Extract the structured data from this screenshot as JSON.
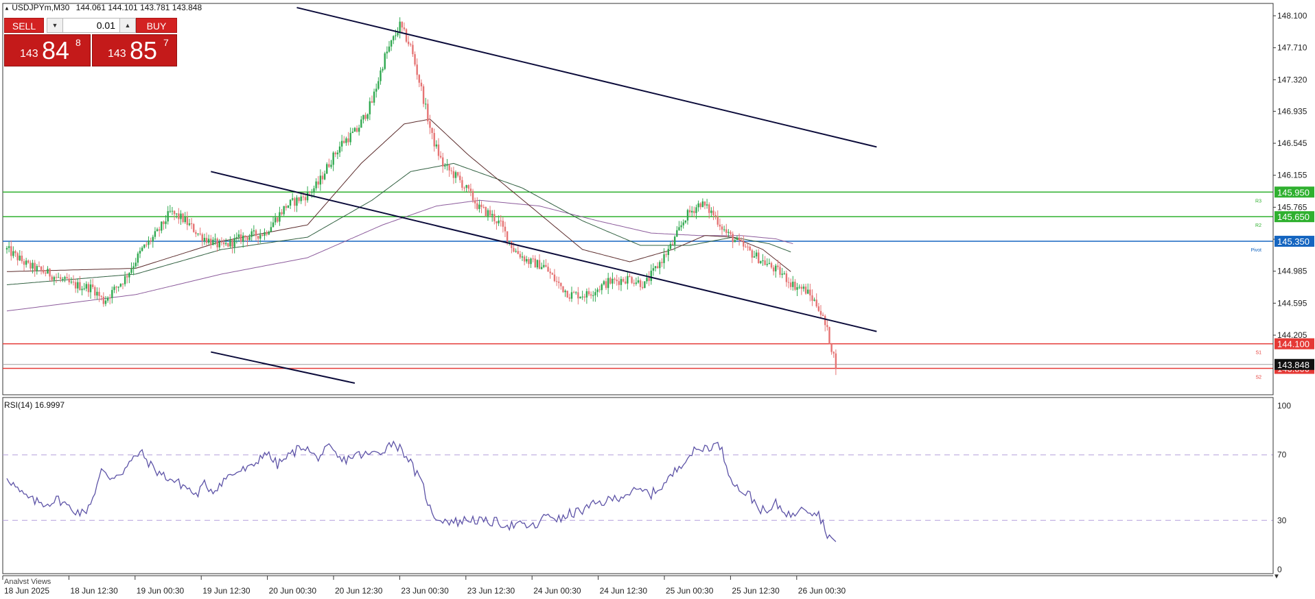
{
  "header": {
    "symbol": "USDJPYm,M30",
    "ohlc": "144.061 144.101 143.781 143.848"
  },
  "trade_panel": {
    "sell_label": "SELL",
    "buy_label": "BUY",
    "lot_value": "0.01",
    "sell_price_small": "143",
    "sell_price_big": "84",
    "sell_price_sup": "8",
    "buy_price_small": "143",
    "buy_price_big": "85",
    "buy_price_sup": "7"
  },
  "chart_data": [
    {
      "type": "candlestick",
      "title": "USDJPYm,M30",
      "ylim": [
        143.7,
        148.2
      ],
      "y_ticks": [
        "148.100",
        "147.710",
        "147.320",
        "146.935",
        "146.545",
        "146.155",
        "145.765",
        "145.375",
        "144.985",
        "144.595",
        "144.205"
      ],
      "x_tick_labels": [
        "18 Jun 2025",
        "18 Jun 12:30",
        "19 Jun 00:30",
        "19 Jun 12:30",
        "20 Jun 00:30",
        "20 Jun 12:30",
        "23 Jun 00:30",
        "23 Jun 12:30",
        "24 Jun 00:30",
        "24 Jun 12:30",
        "25 Jun 00:30",
        "25 Jun 12:30",
        "26 Jun 00:30"
      ],
      "anchors": [
        [
          0,
          145.25
        ],
        [
          10,
          145.05
        ],
        [
          20,
          144.95
        ],
        [
          30,
          144.82
        ],
        [
          40,
          144.78
        ],
        [
          45,
          144.62
        ],
        [
          55,
          144.9
        ],
        [
          63,
          145.25
        ],
        [
          70,
          145.45
        ],
        [
          76,
          145.7
        ],
        [
          82,
          145.62
        ],
        [
          90,
          145.42
        ],
        [
          100,
          145.28
        ],
        [
          110,
          145.4
        ],
        [
          120,
          145.45
        ],
        [
          130,
          145.78
        ],
        [
          140,
          145.92
        ],
        [
          145,
          146.05
        ],
        [
          150,
          146.3
        ],
        [
          156,
          146.55
        ],
        [
          163,
          146.7
        ],
        [
          170,
          147.05
        ],
        [
          176,
          147.6
        ],
        [
          183,
          147.98
        ],
        [
          188,
          147.72
        ],
        [
          193,
          147.2
        ],
        [
          198,
          146.62
        ],
        [
          203,
          146.28
        ],
        [
          210,
          146.12
        ],
        [
          215,
          145.95
        ],
        [
          220,
          145.75
        ],
        [
          225,
          145.68
        ],
        [
          230,
          145.55
        ],
        [
          236,
          145.25
        ],
        [
          243,
          145.1
        ],
        [
          250,
          145.05
        ],
        [
          256,
          144.85
        ],
        [
          262,
          144.7
        ],
        [
          270,
          144.7
        ],
        [
          280,
          144.85
        ],
        [
          290,
          144.9
        ],
        [
          297,
          144.82
        ],
        [
          303,
          145.05
        ],
        [
          310,
          145.32
        ],
        [
          316,
          145.65
        ],
        [
          323,
          145.82
        ],
        [
          329,
          145.68
        ],
        [
          335,
          145.45
        ],
        [
          342,
          145.3
        ],
        [
          348,
          145.18
        ],
        [
          355,
          145.05
        ],
        [
          361,
          144.95
        ],
        [
          366,
          144.82
        ],
        [
          372,
          144.75
        ],
        [
          378,
          144.55
        ],
        [
          382,
          144.25
        ],
        [
          386,
          143.85
        ]
      ],
      "indicators": {
        "ma_fast": [
          [
            0,
            144.98
          ],
          [
            60,
            145.02
          ],
          [
            100,
            145.35
          ],
          [
            140,
            145.55
          ],
          [
            165,
            146.3
          ],
          [
            185,
            146.78
          ],
          [
            197,
            146.84
          ],
          [
            215,
            146.4
          ],
          [
            245,
            145.75
          ],
          [
            268,
            145.25
          ],
          [
            290,
            145.1
          ],
          [
            310,
            145.25
          ],
          [
            325,
            145.42
          ],
          [
            338,
            145.4
          ],
          [
            352,
            145.25
          ],
          [
            365,
            144.98
          ]
        ],
        "ma_mid": [
          [
            0,
            144.82
          ],
          [
            60,
            144.95
          ],
          [
            100,
            145.25
          ],
          [
            140,
            145.4
          ],
          [
            170,
            145.85
          ],
          [
            188,
            146.2
          ],
          [
            208,
            146.3
          ],
          [
            240,
            146.0
          ],
          [
            268,
            145.6
          ],
          [
            295,
            145.3
          ],
          [
            318,
            145.3
          ],
          [
            338,
            145.4
          ],
          [
            355,
            145.32
          ],
          [
            365,
            145.22
          ]
        ],
        "ma_slow": [
          [
            0,
            144.5
          ],
          [
            60,
            144.7
          ],
          [
            100,
            144.95
          ],
          [
            140,
            145.15
          ],
          [
            175,
            145.55
          ],
          [
            200,
            145.78
          ],
          [
            220,
            145.85
          ],
          [
            248,
            145.78
          ],
          [
            275,
            145.6
          ],
          [
            300,
            145.45
          ],
          [
            322,
            145.42
          ],
          [
            342,
            145.42
          ],
          [
            358,
            145.38
          ],
          [
            366,
            145.32
          ]
        ]
      },
      "horizontal_levels": [
        {
          "value": 145.95,
          "label": "145.950",
          "tag": "R3",
          "color": "#2fb02f"
        },
        {
          "value": 145.65,
          "label": "145.650",
          "tag": "R2",
          "color": "#2fb02f"
        },
        {
          "value": 145.35,
          "label": "145.350",
          "tag": "Pivot",
          "color": "#1565c0"
        },
        {
          "value": 144.1,
          "label": "144.100",
          "tag": "S1",
          "color": "#e53935"
        },
        {
          "value": 143.8,
          "label": "143.800",
          "tag": "S2",
          "color": "#e53935"
        }
      ],
      "current_price": {
        "value": 143.848,
        "label": "143.848"
      },
      "channel_lines": [
        {
          "x0": 135,
          "y0": 148.2,
          "x1": 405,
          "y1": 146.5
        },
        {
          "x0": 95,
          "y0": 146.2,
          "x1": 405,
          "y1": 144.25
        },
        {
          "x0": 95,
          "y0": 144.0,
          "x1": 162,
          "y1": 143.62
        }
      ],
      "colors": {
        "bull": "#2fa84f",
        "bear": "#e57373",
        "ma_fast": "#5a2a2a",
        "ma_mid": "#2f5f3f",
        "ma_slow": "#8b5a9b"
      }
    },
    {
      "type": "line",
      "title": "RSI(14) 16.9997",
      "ylim": [
        0,
        100
      ],
      "y_ticks": [
        "100",
        "70",
        "30",
        "0"
      ],
      "levels": [
        70,
        30
      ],
      "series": [
        {
          "values_anchors": [
            [
              0,
              57
            ],
            [
              6,
              47
            ],
            [
              12,
              42
            ],
            [
              18,
              40
            ],
            [
              24,
              43
            ],
            [
              30,
              37
            ],
            [
              36,
              34
            ],
            [
              40,
              44
            ],
            [
              44,
              60
            ],
            [
              48,
              56
            ],
            [
              54,
              60
            ],
            [
              58,
              66
            ],
            [
              62,
              72
            ],
            [
              68,
              62
            ],
            [
              72,
              58
            ],
            [
              78,
              54
            ],
            [
              84,
              50
            ],
            [
              88,
              45
            ],
            [
              92,
              52
            ],
            [
              96,
              48
            ],
            [
              102,
              56
            ],
            [
              108,
              60
            ],
            [
              114,
              62
            ],
            [
              120,
              72
            ],
            [
              126,
              64
            ],
            [
              132,
              70
            ],
            [
              138,
              76
            ],
            [
              144,
              68
            ],
            [
              150,
              74
            ],
            [
              156,
              66
            ],
            [
              162,
              70
            ],
            [
              168,
              70
            ],
            [
              174,
              72
            ],
            [
              180,
              78
            ],
            [
              186,
              70
            ],
            [
              190,
              60
            ],
            [
              194,
              50
            ],
            [
              198,
              33
            ],
            [
              204,
              30
            ],
            [
              210,
              29
            ],
            [
              216,
              31
            ],
            [
              222,
              29
            ],
            [
              228,
              29
            ],
            [
              234,
              27
            ],
            [
              240,
              27
            ],
            [
              246,
              26
            ],
            [
              252,
              34
            ],
            [
              258,
              30
            ],
            [
              262,
              34
            ],
            [
              268,
              36
            ],
            [
              274,
              40
            ],
            [
              280,
              42
            ],
            [
              286,
              45
            ],
            [
              290,
              47
            ],
            [
              296,
              48
            ],
            [
              300,
              46
            ],
            [
              306,
              52
            ],
            [
              310,
              58
            ],
            [
              316,
              68
            ],
            [
              320,
              72
            ],
            [
              326,
              75
            ],
            [
              332,
              76
            ],
            [
              336,
              60
            ],
            [
              340,
              50
            ],
            [
              346,
              45
            ],
            [
              350,
              38
            ],
            [
              354,
              34
            ],
            [
              358,
              40
            ],
            [
              362,
              36
            ],
            [
              366,
              32
            ],
            [
              370,
              40
            ],
            [
              374,
              36
            ],
            [
              378,
              34
            ],
            [
              382,
              22
            ],
            [
              386,
              17
            ]
          ],
          "color": "#5c52a6"
        }
      ]
    }
  ],
  "footer": {
    "analyst_views": "Analyst Views"
  }
}
